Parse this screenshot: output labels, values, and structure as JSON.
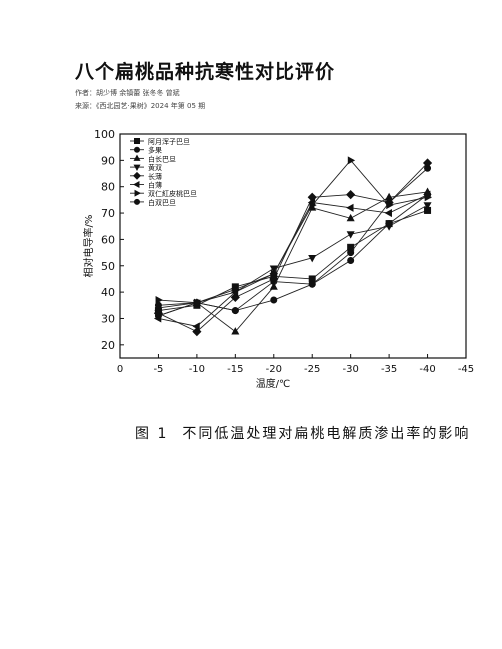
{
  "paper": {
    "title": "八个扁桃品种抗寒性对比评价",
    "authors_label": "作者：",
    "authors": "胡少博 余镇蕾 张冬冬 曾斌",
    "source_label": "来源：",
    "source": "《西北园艺·果树》2024 年第 05 期"
  },
  "figure": {
    "number": "图 1",
    "caption": "不同低温处理对扁桃电解质渗出率的影响"
  },
  "chart_data": {
    "type": "line",
    "xlabel": "温度/℃",
    "ylabel": "相对电导率/%",
    "x": [
      -5,
      -10,
      -15,
      -20,
      -25,
      -30,
      -35,
      -40
    ],
    "xticks": [
      "0",
      "-5",
      "-10",
      "-15",
      "-20",
      "-25",
      "-30",
      "-35",
      "-40",
      "-45"
    ],
    "yticks": [
      "20",
      "30",
      "40",
      "50",
      "60",
      "70",
      "80",
      "90",
      "100"
    ],
    "xlim": [
      0,
      -45
    ],
    "ylim": [
      15,
      100
    ],
    "legend_position": "top-left",
    "series": [
      {
        "name": "阿月浑子巴旦",
        "marker": "square",
        "values": [
          33,
          35,
          42,
          46,
          45,
          57,
          66,
          71
        ]
      },
      {
        "name": "多果",
        "marker": "circle",
        "values": [
          31,
          36,
          33,
          44,
          43,
          55,
          74,
          87
        ]
      },
      {
        "name": "白长巴旦",
        "marker": "triangle-up",
        "values": [
          34,
          36,
          25,
          42,
          72,
          68,
          76,
          78
        ]
      },
      {
        "name": "黄双",
        "marker": "triangle-down",
        "values": [
          31,
          36,
          40,
          49,
          53,
          62,
          65,
          73
        ]
      },
      {
        "name": "长薄",
        "marker": "diamond",
        "values": [
          32,
          25,
          38,
          45,
          76,
          77,
          74,
          89
        ]
      },
      {
        "name": "白薄",
        "marker": "triangle-left",
        "values": [
          30,
          27,
          40,
          47,
          74,
          72,
          70,
          77
        ]
      },
      {
        "name": "双仁紅皮桃巴旦",
        "marker": "triangle-right",
        "values": [
          37,
          36,
          41,
          47,
          73,
          90,
          73,
          76
        ]
      },
      {
        "name": "白双巴旦",
        "marker": "circle",
        "values": [
          35,
          36,
          33,
          37,
          43,
          52,
          66,
          77
        ]
      }
    ]
  }
}
